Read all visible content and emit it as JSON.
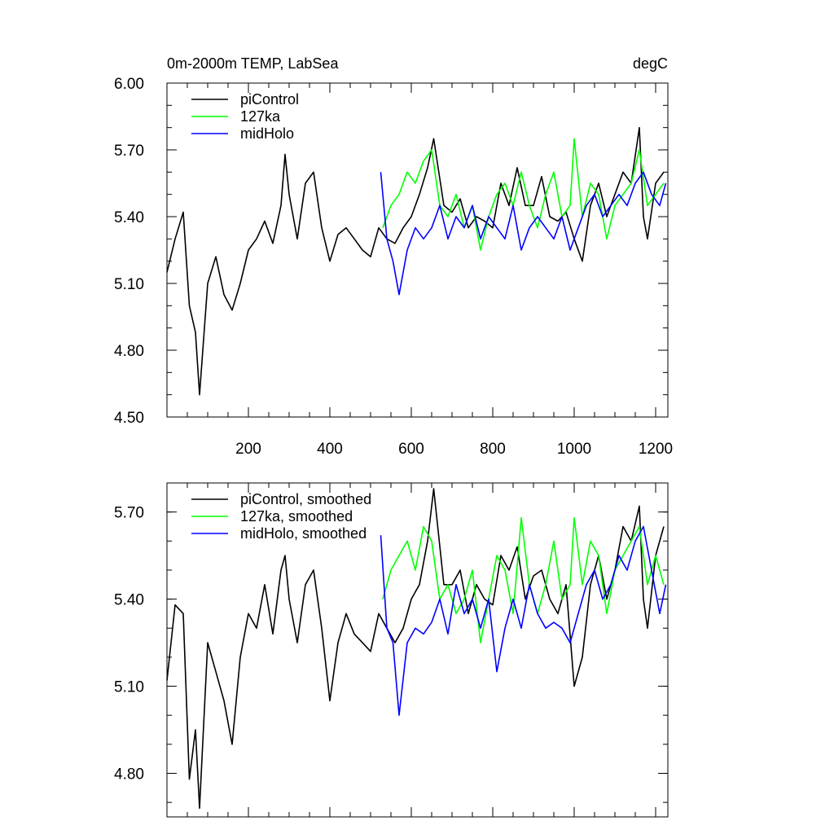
{
  "title_left": "0m-2000m TEMP, LabSea",
  "title_right": "degC",
  "colors": {
    "piControl": "#000000",
    "127ka": "#00ff00",
    "midHolo": "#0000ff"
  },
  "chart_data": [
    {
      "type": "line",
      "panel": "top",
      "xlim": [
        0,
        1230
      ],
      "ylim": [
        4.5,
        6.0
      ],
      "xticks": [
        200,
        400,
        600,
        800,
        1000,
        1200
      ],
      "xtick_labels": [
        "200",
        "400",
        "600",
        "800",
        "1000",
        "1200"
      ],
      "yticks": [
        4.5,
        4.8,
        5.1,
        5.4,
        5.7,
        6.0
      ],
      "ytick_labels": [
        "4.50",
        "4.80",
        "5.10",
        "5.40",
        "5.70",
        "6.00"
      ],
      "legend_position": "top-left",
      "series": [
        {
          "name": "piControl",
          "x": [
            0,
            20,
            40,
            55,
            70,
            80,
            100,
            120,
            140,
            160,
            180,
            200,
            220,
            240,
            260,
            280,
            290,
            300,
            320,
            340,
            360,
            380,
            400,
            420,
            440,
            460,
            480,
            500,
            520,
            540,
            560,
            580,
            600,
            620,
            640,
            655,
            680,
            700,
            720,
            740,
            760,
            780,
            800,
            820,
            840,
            860,
            880,
            900,
            920,
            940,
            960,
            980,
            1000,
            1020,
            1040,
            1060,
            1080,
            1100,
            1120,
            1140,
            1160,
            1170,
            1180,
            1200,
            1220
          ],
          "y": [
            5.15,
            5.3,
            5.42,
            5.0,
            4.88,
            4.6,
            5.1,
            5.22,
            5.05,
            4.98,
            5.1,
            5.25,
            5.3,
            5.38,
            5.28,
            5.45,
            5.68,
            5.5,
            5.3,
            5.55,
            5.6,
            5.35,
            5.2,
            5.32,
            5.35,
            5.3,
            5.25,
            5.22,
            5.35,
            5.3,
            5.28,
            5.35,
            5.4,
            5.5,
            5.62,
            5.75,
            5.45,
            5.42,
            5.48,
            5.35,
            5.4,
            5.38,
            5.35,
            5.55,
            5.45,
            5.62,
            5.45,
            5.45,
            5.58,
            5.4,
            5.38,
            5.42,
            5.3,
            5.2,
            5.45,
            5.55,
            5.4,
            5.5,
            5.6,
            5.55,
            5.8,
            5.4,
            5.3,
            5.55,
            5.6
          ]
        },
        {
          "name": "127ka",
          "x": [
            530,
            550,
            570,
            590,
            610,
            630,
            650,
            670,
            690,
            710,
            730,
            750,
            770,
            790,
            810,
            830,
            850,
            870,
            890,
            910,
            930,
            950,
            970,
            990,
            1000,
            1020,
            1040,
            1060,
            1080,
            1100,
            1120,
            1140,
            1160,
            1180,
            1200,
            1220
          ],
          "y": [
            5.35,
            5.45,
            5.5,
            5.6,
            5.55,
            5.65,
            5.7,
            5.45,
            5.4,
            5.5,
            5.35,
            5.45,
            5.25,
            5.4,
            5.5,
            5.55,
            5.45,
            5.6,
            5.45,
            5.35,
            5.5,
            5.6,
            5.4,
            5.45,
            5.75,
            5.4,
            5.55,
            5.5,
            5.3,
            5.45,
            5.5,
            5.55,
            5.7,
            5.45,
            5.5,
            5.55
          ]
        },
        {
          "name": "midHolo",
          "x": [
            525,
            540,
            555,
            570,
            590,
            610,
            630,
            650,
            670,
            690,
            710,
            730,
            750,
            770,
            790,
            810,
            830,
            850,
            870,
            890,
            910,
            930,
            950,
            970,
            990,
            1010,
            1030,
            1050,
            1070,
            1090,
            1110,
            1130,
            1150,
            1170,
            1190,
            1210,
            1225
          ],
          "y": [
            5.6,
            5.3,
            5.2,
            5.05,
            5.25,
            5.35,
            5.3,
            5.35,
            5.45,
            5.3,
            5.4,
            5.35,
            5.45,
            5.3,
            5.4,
            5.35,
            5.3,
            5.45,
            5.25,
            5.35,
            5.4,
            5.35,
            5.3,
            5.4,
            5.25,
            5.35,
            5.45,
            5.5,
            5.4,
            5.45,
            5.5,
            5.45,
            5.55,
            5.6,
            5.5,
            5.45,
            5.55
          ]
        }
      ]
    },
    {
      "type": "line",
      "panel": "bottom",
      "xlim": [
        0,
        1230
      ],
      "ylim": [
        4.65,
        5.8
      ],
      "xticks": [
        200,
        400,
        600,
        800,
        1000,
        1200
      ],
      "yticks": [
        4.8,
        5.1,
        5.4,
        5.7
      ],
      "ytick_labels": [
        "4.80",
        "5.10",
        "5.40",
        "5.70"
      ],
      "legend_position": "top-left",
      "series": [
        {
          "name": "piControl, smoothed",
          "x": [
            0,
            20,
            40,
            55,
            70,
            80,
            100,
            120,
            140,
            160,
            180,
            200,
            220,
            240,
            260,
            280,
            290,
            300,
            320,
            340,
            360,
            380,
            400,
            420,
            440,
            460,
            480,
            500,
            520,
            540,
            560,
            580,
            600,
            620,
            640,
            655,
            680,
            700,
            720,
            740,
            760,
            780,
            800,
            820,
            840,
            860,
            880,
            900,
            920,
            940,
            960,
            980,
            1000,
            1020,
            1040,
            1060,
            1080,
            1100,
            1120,
            1140,
            1160,
            1170,
            1180,
            1200,
            1220
          ],
          "y": [
            5.12,
            5.38,
            5.35,
            4.78,
            4.95,
            4.68,
            5.25,
            5.15,
            5.05,
            4.9,
            5.2,
            5.35,
            5.3,
            5.45,
            5.28,
            5.5,
            5.55,
            5.4,
            5.25,
            5.45,
            5.5,
            5.3,
            5.05,
            5.25,
            5.35,
            5.28,
            5.25,
            5.22,
            5.35,
            5.3,
            5.25,
            5.3,
            5.4,
            5.45,
            5.6,
            5.78,
            5.45,
            5.45,
            5.5,
            5.35,
            5.45,
            5.4,
            5.38,
            5.55,
            5.5,
            5.58,
            5.4,
            5.48,
            5.5,
            5.4,
            5.35,
            5.45,
            5.1,
            5.2,
            5.45,
            5.55,
            5.4,
            5.5,
            5.65,
            5.6,
            5.72,
            5.4,
            5.3,
            5.55,
            5.65
          ]
        },
        {
          "name": "127ka, smoothed",
          "x": [
            530,
            550,
            570,
            590,
            610,
            630,
            650,
            670,
            690,
            710,
            730,
            750,
            770,
            790,
            810,
            830,
            850,
            870,
            890,
            910,
            930,
            950,
            970,
            990,
            1000,
            1020,
            1040,
            1060,
            1080,
            1100,
            1120,
            1140,
            1160,
            1180,
            1200,
            1220
          ],
          "y": [
            5.4,
            5.5,
            5.55,
            5.6,
            5.5,
            5.65,
            5.6,
            5.4,
            5.45,
            5.35,
            5.4,
            5.5,
            5.25,
            5.4,
            5.55,
            5.5,
            5.35,
            5.68,
            5.45,
            5.35,
            5.45,
            5.6,
            5.4,
            5.45,
            5.68,
            5.45,
            5.6,
            5.55,
            5.35,
            5.5,
            5.55,
            5.6,
            5.65,
            5.45,
            5.55,
            5.45
          ]
        },
        {
          "name": "midHolo, smoothed",
          "x": [
            525,
            540,
            555,
            570,
            590,
            610,
            630,
            650,
            670,
            690,
            710,
            730,
            750,
            770,
            790,
            810,
            830,
            850,
            870,
            890,
            910,
            930,
            950,
            970,
            990,
            1010,
            1030,
            1050,
            1070,
            1090,
            1110,
            1130,
            1150,
            1170,
            1190,
            1210,
            1225
          ],
          "y": [
            5.62,
            5.3,
            5.25,
            5.0,
            5.25,
            5.3,
            5.28,
            5.32,
            5.4,
            5.28,
            5.45,
            5.35,
            5.4,
            5.3,
            5.4,
            5.15,
            5.3,
            5.4,
            5.3,
            5.45,
            5.35,
            5.3,
            5.32,
            5.3,
            5.25,
            5.35,
            5.45,
            5.5,
            5.4,
            5.45,
            5.55,
            5.5,
            5.6,
            5.65,
            5.5,
            5.35,
            5.45
          ]
        }
      ]
    }
  ]
}
